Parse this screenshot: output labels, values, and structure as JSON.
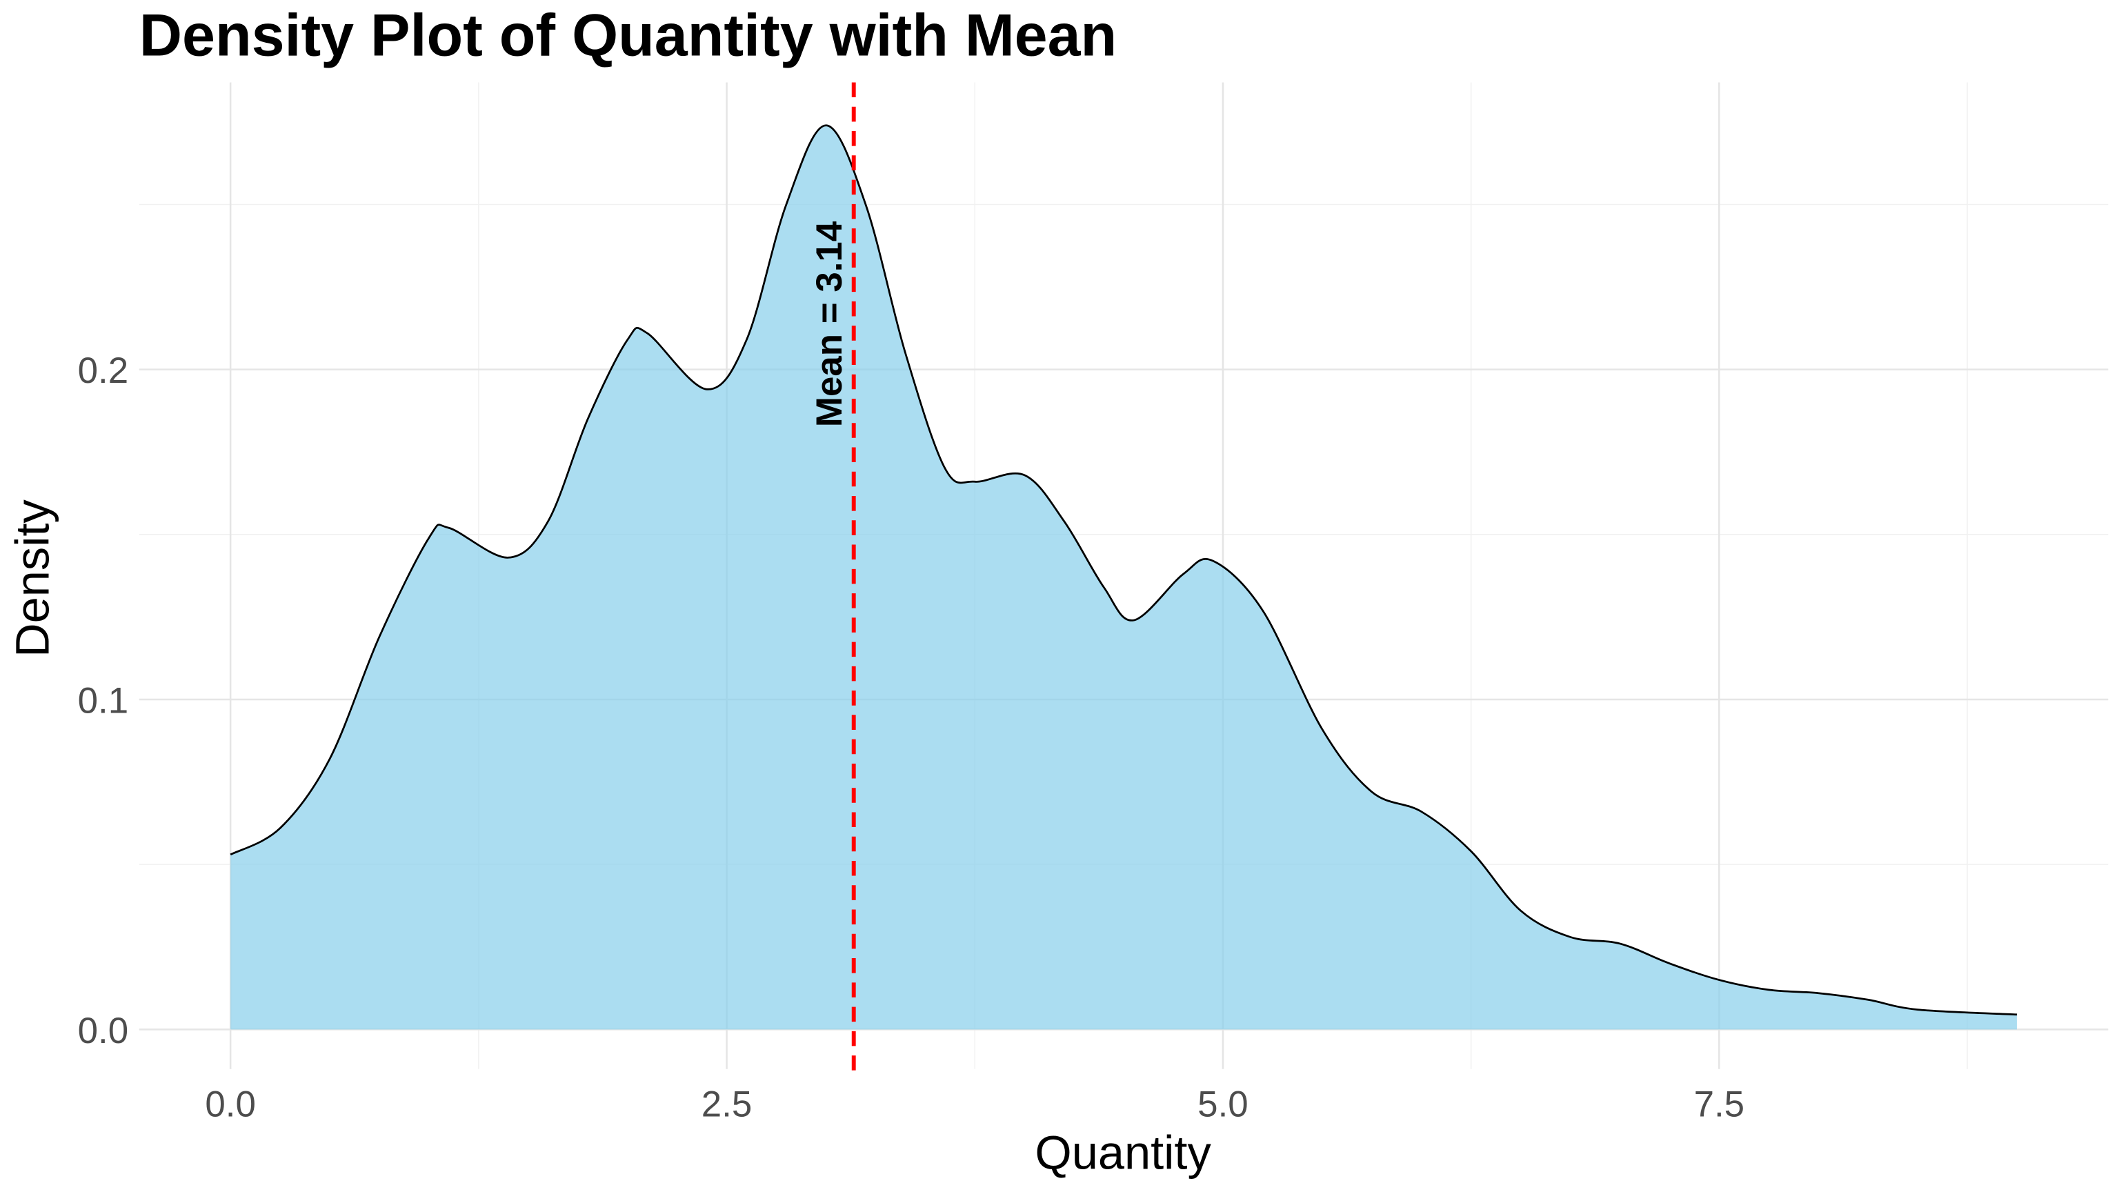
{
  "chart_data": {
    "type": "area",
    "title": "Density Plot of Quantity with Mean",
    "xlabel": "Quantity",
    "ylabel": "Density",
    "xlim": [
      -0.46,
      9.46
    ],
    "ylim": [
      -0.012,
      0.287
    ],
    "x_ticks": [
      0,
      2.5,
      5,
      7.5
    ],
    "x_tick_labels": [
      "0.0",
      "2.5",
      "5.0",
      "7.5"
    ],
    "y_ticks": [
      0,
      0.1,
      0.2
    ],
    "y_tick_labels": [
      "0.0",
      "0.1",
      "0.2"
    ],
    "grid": true,
    "fill_color": "#87CEEB",
    "line_color": "#000000",
    "series": [
      {
        "name": "density",
        "x": [
          0,
          0.25,
          0.5,
          0.75,
          1.0,
          1.1,
          1.4,
          1.6,
          1.8,
          2.0,
          2.1,
          2.4,
          2.6,
          2.8,
          3.0,
          3.2,
          3.4,
          3.6,
          3.75,
          4.0,
          4.2,
          4.4,
          4.55,
          4.8,
          4.95,
          5.2,
          5.5,
          5.75,
          6.0,
          6.25,
          6.5,
          6.75,
          7.0,
          7.25,
          7.5,
          7.75,
          8.0,
          8.25,
          8.5,
          9.0
        ],
        "y": [
          0.053,
          0.061,
          0.082,
          0.119,
          0.149,
          0.152,
          0.143,
          0.154,
          0.185,
          0.209,
          0.211,
          0.194,
          0.209,
          0.25,
          0.274,
          0.25,
          0.205,
          0.17,
          0.166,
          0.168,
          0.154,
          0.134,
          0.124,
          0.138,
          0.142,
          0.127,
          0.091,
          0.072,
          0.066,
          0.054,
          0.036,
          0.028,
          0.026,
          0.02,
          0.015,
          0.012,
          0.011,
          0.009,
          0.006,
          0.0045
        ]
      }
    ],
    "mean": 3.14,
    "mean_color": "#FF0000",
    "annotations": [
      {
        "text": "Mean = 3.14",
        "x": 3.14
      }
    ]
  }
}
